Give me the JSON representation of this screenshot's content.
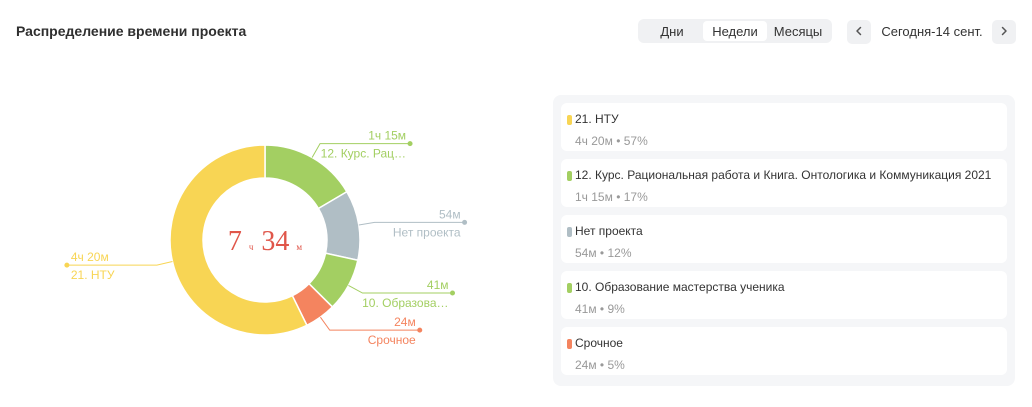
{
  "header": {
    "title": "Распределение времени проекта",
    "tabs": [
      {
        "label": "Дни",
        "active": false
      },
      {
        "label": "Недели",
        "active": true
      },
      {
        "label": "Месяцы",
        "active": false
      }
    ],
    "period": "Сегодня-14 сент.",
    "prev_icon": "‹",
    "next_icon": "›"
  },
  "center": {
    "hours": "7",
    "hours_unit": "ч",
    "minutes": "34",
    "minutes_unit": "м",
    "color": "#e0564a"
  },
  "chart_data": {
    "type": "pie",
    "variant": "donut",
    "start_angle_deg": 0,
    "series": [
      {
        "name": "12. Курс. Рациональная работа и Книга. Онтологика и Коммуникация 2021",
        "short": "12. Курс. Рац…",
        "time": "1ч 15м",
        "minutes": 75,
        "percent": 17,
        "color": "#a3cf62",
        "side": "right"
      },
      {
        "name": "Нет проекта",
        "short": "Нет проекта",
        "time": "54м",
        "minutes": 54,
        "percent": 12,
        "color": "#b0bec5",
        "side": "right"
      },
      {
        "name": "10. Образование мастерства ученика",
        "short": "10. Образова…",
        "time": "41м",
        "minutes": 41,
        "percent": 9,
        "color": "#a3cf62",
        "side": "right"
      },
      {
        "name": "Срочное",
        "short": "Срочное",
        "time": "24м",
        "minutes": 24,
        "percent": 5,
        "color": "#f4845f",
        "side": "right"
      },
      {
        "name": "21. НТУ",
        "short": "21. НТУ",
        "time": "4ч 20м",
        "minutes": 260,
        "percent": 57,
        "color": "#f8d554",
        "side": "left"
      }
    ]
  },
  "legend": [
    {
      "name": "21. НТУ",
      "sub": "4ч 20м • 57%",
      "color": "#f8d554"
    },
    {
      "name": "12. Курс. Рациональная работа и Книга. Онтологика и Коммуникация 2021",
      "sub": "1ч 15м • 17%",
      "color": "#a3cf62"
    },
    {
      "name": "Нет проекта",
      "sub": "54м • 12%",
      "color": "#b0bec5"
    },
    {
      "name": "10. Образование мастерства ученика",
      "sub": "41м • 9%",
      "color": "#a3cf62"
    },
    {
      "name": "Срочное",
      "sub": "24м • 5%",
      "color": "#f4845f"
    }
  ]
}
